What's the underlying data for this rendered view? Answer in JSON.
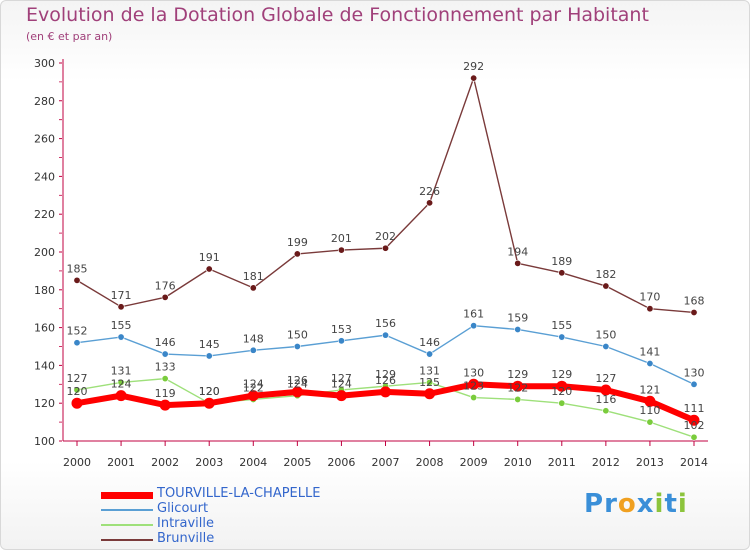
{
  "header": {
    "title": "Evolution de la Dotation Globale de Fonctionnement par Habitant",
    "subtitle": "(en € et par an)"
  },
  "logo": {
    "text": "Proxiti",
    "letters": [
      {
        "ch": "P",
        "color": "#3a8fd8"
      },
      {
        "ch": "r",
        "color": "#3a8fd8"
      },
      {
        "ch": "o",
        "color": "#f0a020"
      },
      {
        "ch": "x",
        "color": "#3a8fd8"
      },
      {
        "ch": "i",
        "color": "#8cc43c"
      },
      {
        "ch": "t",
        "color": "#3a8fd8"
      },
      {
        "ch": "i",
        "color": "#8cc43c"
      }
    ]
  },
  "chart_data": {
    "type": "line",
    "title": "Evolution de la Dotation Globale de Fonctionnement par Habitant",
    "subtitle": "(en € et par an)",
    "xlabel": "",
    "ylabel": "",
    "ylim": [
      100,
      300
    ],
    "yticks": [
      100,
      120,
      140,
      160,
      180,
      200,
      220,
      240,
      260,
      280,
      300
    ],
    "x": [
      "2000",
      "2001",
      "2002",
      "2003",
      "2004",
      "2005",
      "2006",
      "2007",
      "2008",
      "2009",
      "2010",
      "2011",
      "2012",
      "2013",
      "2014"
    ],
    "grid": false,
    "legend_position": "bottom-left",
    "series": [
      {
        "name": "TOURVILLE-LA-CHAPELLE",
        "color": "#ff0000",
        "marker": "#ff0000",
        "highlight": true,
        "values": [
          120,
          124,
          119,
          120,
          124,
          126,
          124,
          126,
          125,
          130,
          129,
          129,
          127,
          121,
          111
        ]
      },
      {
        "name": "Glicourt",
        "color": "#5a9fd4",
        "marker": "#3a86c8",
        "highlight": false,
        "values": [
          152,
          155,
          146,
          145,
          148,
          150,
          153,
          156,
          146,
          161,
          159,
          155,
          150,
          141,
          130
        ]
      },
      {
        "name": "Intraville",
        "color": "#9ee07a",
        "marker": "#7acc3c",
        "highlight": false,
        "values": [
          127,
          131,
          133,
          120,
          122,
          124,
          127,
          129,
          131,
          123,
          122,
          120,
          116,
          110,
          102
        ]
      },
      {
        "name": "Brunville",
        "color": "#7a3a3a",
        "marker": "#6a1a1a",
        "highlight": false,
        "values": [
          185,
          171,
          176,
          191,
          181,
          199,
          201,
          202,
          226,
          292,
          194,
          189,
          182,
          170,
          168
        ]
      }
    ]
  }
}
